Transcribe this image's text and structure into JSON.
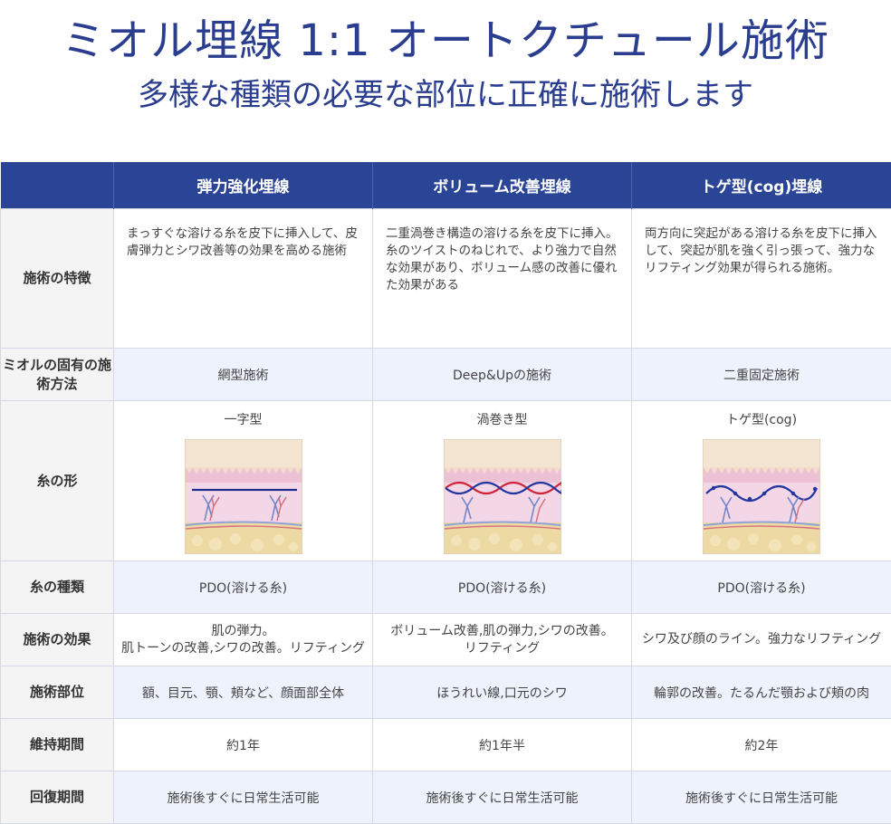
{
  "header": {
    "title": "ミオル埋線 1:1 オートクチュール施術",
    "subtitle": "多様な種類の必要な部位に正確に施術します"
  },
  "columns": [
    "",
    "弾力強化埋線",
    "ボリューム改善埋線",
    "トゲ型(cog)埋線"
  ],
  "rows": {
    "features": {
      "label": "施術の特徴",
      "values": [
        "まっすぐな溶ける糸を皮下に挿入して、皮膚弾力とシワ改善等の効果を高める施術",
        "二重渦巻き構造の溶ける糸を皮下に挿入。糸のツイストのねじれで、より強力で自然な効果があり、ボリューム感の改善に優れた効果がある",
        "両方向に突起がある溶ける糸を皮下に挿入して、突起が肌を強く引っ張って、強力なリフティング効果が得られる施術。"
      ]
    },
    "method": {
      "label": "ミオルの固有の施術方法",
      "values": [
        "網型施術",
        "Deep&Upの施術",
        "二重固定施術"
      ]
    },
    "shape": {
      "label": "糸の形",
      "values": [
        "一字型",
        "渦巻き型",
        "トゲ型(cog)"
      ],
      "diagram_icons": [
        "straight-thread-skin-diagram",
        "spiral-thread-skin-diagram",
        "cog-thread-skin-diagram"
      ]
    },
    "thread_type": {
      "label": "糸の種類",
      "values": [
        "PDO(溶ける糸)",
        "PDO(溶ける糸)",
        "PDO(溶ける糸)"
      ]
    },
    "effect": {
      "label": "施術の効果",
      "values": [
        [
          "肌の弾力。",
          "肌トーンの改善,シワの改善。リフティング"
        ],
        [
          "ボリューム改善,肌の弾力,シワの改善。",
          "リフティング"
        ],
        [
          "シワ及び顔のライン。強力なリフティング"
        ]
      ]
    },
    "area": {
      "label": "施術部位",
      "values": [
        "額、目元、顎、頬など、顔面部全体",
        "ほうれい線,口元のシワ",
        "輪郭の改善。たるんだ顎および頬の肉"
      ]
    },
    "duration": {
      "label": "維持期間",
      "values": [
        "約1年",
        "約1年半",
        "約2年"
      ]
    },
    "recovery": {
      "label": "回復期間",
      "values": [
        "施術後すぐに日常生活可能",
        "施術後すぐに日常生活可能",
        "施術後すぐに日常生活可能"
      ]
    }
  },
  "colors": {
    "header_bg": "#2a4595",
    "title": "#2a3d8f",
    "alt_row": "#eef2fc",
    "thread_straight": "#1f2f8f",
    "thread_spiral_red": "#d0243a",
    "thread_spiral_blue": "#2336a0"
  }
}
